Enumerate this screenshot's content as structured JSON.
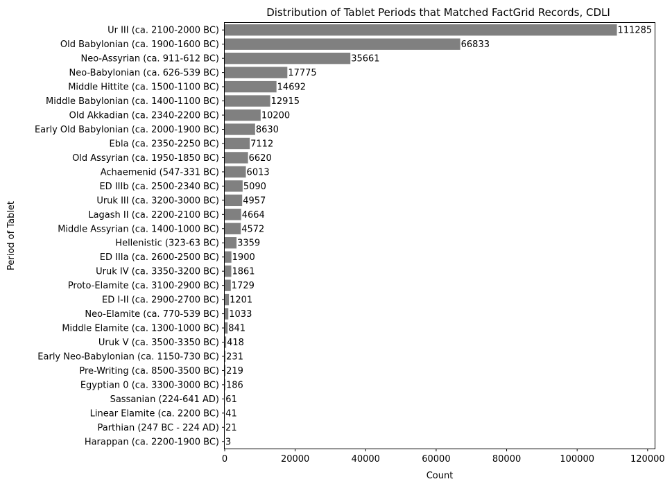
{
  "chart_data": {
    "type": "bar",
    "orientation": "horizontal",
    "title": "Distribution of Tablet Periods that Matched FactGrid Records, CDLI",
    "xlabel": "Count",
    "ylabel": "Period of Tablet",
    "xlim": [
      0,
      122000
    ],
    "xticks": [
      0,
      20000,
      40000,
      60000,
      80000,
      100000,
      120000
    ],
    "grid": false,
    "bar_color": "#808080",
    "categories": [
      "Ur III (ca. 2100-2000 BC)",
      "Old Babylonian (ca. 1900-1600 BC)",
      "Neo-Assyrian (ca. 911-612 BC)",
      "Neo-Babylonian (ca. 626-539 BC)",
      "Middle Hittite (ca. 1500-1100 BC)",
      "Middle Babylonian (ca. 1400-1100 BC)",
      "Old Akkadian (ca. 2340-2200 BC)",
      "Early Old Babylonian (ca. 2000-1900 BC)",
      "Ebla (ca. 2350-2250 BC)",
      "Old Assyrian (ca. 1950-1850 BC)",
      "Achaemenid (547-331 BC)",
      "ED IIIb (ca. 2500-2340 BC)",
      "Uruk III (ca. 3200-3000 BC)",
      "Lagash II (ca. 2200-2100 BC)",
      "Middle Assyrian (ca. 1400-1000 BC)",
      "Hellenistic (323-63 BC)",
      "ED IIIa (ca. 2600-2500 BC)",
      "Uruk IV (ca. 3350-3200 BC)",
      "Proto-Elamite (ca. 3100-2900 BC)",
      "ED I-II (ca. 2900-2700 BC)",
      "Neo-Elamite (ca. 770-539 BC)",
      "Middle Elamite (ca. 1300-1000 BC)",
      "Uruk V (ca. 3500-3350 BC)",
      "Early Neo-Babylonian (ca. 1150-730 BC)",
      "Pre-Writing (ca. 8500-3500 BC)",
      "Egyptian 0 (ca. 3300-3000 BC)",
      "Sassanian (224-641 AD)",
      "Linear Elamite (ca. 2200 BC)",
      "Parthian (247 BC - 224 AD)",
      "Harappan (ca. 2200-1900 BC)"
    ],
    "values": [
      111285,
      66833,
      35661,
      17775,
      14692,
      12915,
      10200,
      8630,
      7112,
      6620,
      6013,
      5090,
      4957,
      4664,
      4572,
      3359,
      1900,
      1861,
      1729,
      1201,
      1033,
      841,
      418,
      231,
      219,
      186,
      61,
      41,
      21,
      3
    ]
  }
}
